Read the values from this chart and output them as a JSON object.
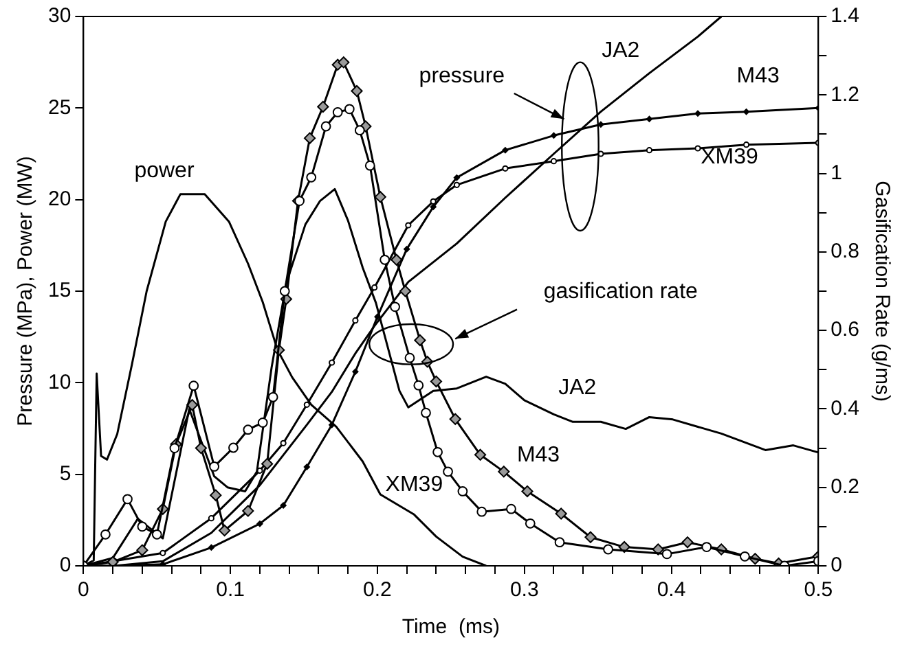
{
  "chart_data": {
    "type": "line",
    "xlabel": "Time  (ms)",
    "ylabel": "Pressure (MPa), Power (MW)",
    "y2label": "Gasification Rate (g/ms)",
    "xlim": [
      0,
      0.5
    ],
    "xticks": [
      0,
      {
        "value": 0.02,
        "label": null
      },
      {
        "value": 0.04,
        "label": null
      },
      {
        "value": 0.06,
        "label": null
      },
      {
        "value": 0.08,
        "label": null
      },
      0.1,
      {
        "value": 0.12,
        "label": null
      },
      {
        "value": 0.14,
        "label": null
      },
      {
        "value": 0.16,
        "label": null
      },
      {
        "value": 0.18,
        "label": null
      },
      0.2,
      {
        "value": 0.22,
        "label": null
      },
      {
        "value": 0.24,
        "label": null
      },
      {
        "value": 0.26,
        "label": null
      },
      {
        "value": 0.28,
        "label": null
      },
      0.3,
      {
        "value": 0.32,
        "label": null
      },
      {
        "value": 0.34,
        "label": null
      },
      {
        "value": 0.36,
        "label": null
      },
      {
        "value": 0.38,
        "label": null
      },
      0.4,
      {
        "value": 0.42,
        "label": null
      },
      {
        "value": 0.44,
        "label": null
      },
      {
        "value": 0.46,
        "label": null
      },
      {
        "value": 0.48,
        "label": null
      },
      0.5
    ],
    "ylim": [
      0,
      30
    ],
    "yticks": [
      0,
      5,
      10,
      15,
      20,
      25,
      30
    ],
    "y2lim": [
      0,
      1.4
    ],
    "y2ticks": [
      0,
      {
        "value": 0.1,
        "label": null
      },
      0.2,
      {
        "value": 0.3,
        "label": null
      },
      0.4,
      {
        "value": 0.5,
        "label": null
      },
      0.6,
      {
        "value": 0.7,
        "label": null
      },
      0.8,
      {
        "value": 0.9,
        "label": null
      },
      1,
      {
        "value": 1.1,
        "label": null
      },
      1.2,
      {
        "value": 1.3,
        "label": null
      },
      1.4
    ],
    "grid": false,
    "legend": false,
    "line_style": "solid",
    "series": [
      {
        "name": "power",
        "color": "#000000",
        "marker": "none",
        "x": [
          0,
          0.007,
          0.009,
          0.012,
          0.016,
          0.023,
          0.033,
          0.043,
          0.056,
          0.066,
          0.0825,
          0.099,
          0.112,
          0.122,
          0.132,
          0.142,
          0.155,
          0.172,
          0.19,
          0.202,
          0.225,
          0.24,
          0.258,
          0.274
        ],
        "values": [
          0,
          0.3,
          10.5,
          6,
          5.8,
          7.2,
          11,
          15,
          18.8,
          20.3,
          20.3,
          18.8,
          16.5,
          14.4,
          11.8,
          10.3,
          8.8,
          7.6,
          5.7,
          3.9,
          2.8,
          1.6,
          0.5,
          0
        ]
      },
      {
        "name": "JA2",
        "color": "#000000",
        "marker": "none",
        "x": [
          0,
          0.021,
          0.054,
          0.087,
          0.12,
          0.152,
          0.169,
          0.185,
          0.198,
          0.221,
          0.254,
          0.287,
          0.32,
          0.352,
          0.385,
          0.418,
          0.434
        ],
        "values": [
          0,
          0,
          0.25,
          1.8,
          4.4,
          7.7,
          9.5,
          11.6,
          13.1,
          15.5,
          17.6,
          20.1,
          22.5,
          24.8,
          26.9,
          28.9,
          30
        ]
      },
      {
        "name": "M43",
        "color": "#000000",
        "marker": "diamond",
        "x": [
          0,
          0.021,
          0.054,
          0.087,
          0.12,
          0.136,
          0.152,
          0.169,
          0.185,
          0.2,
          0.22,
          0.238,
          0.254,
          0.287,
          0.32,
          0.352,
          0.385,
          0.418,
          0.451,
          0.5
        ],
        "values": [
          0,
          0,
          0.08,
          1.0,
          2.3,
          3.3,
          5.4,
          7.7,
          10.6,
          13.6,
          17.3,
          19.6,
          21.2,
          22.7,
          23.5,
          24.1,
          24.4,
          24.7,
          24.8,
          25.0
        ]
      },
      {
        "name": "XM39",
        "color": "#000000",
        "marker": "circle",
        "x": [
          0,
          0.021,
          0.054,
          0.087,
          0.12,
          0.136,
          0.152,
          0.169,
          0.185,
          0.198,
          0.221,
          0.238,
          0.254,
          0.287,
          0.32,
          0.352,
          0.385,
          0.418,
          0.451,
          0.5
        ],
        "values": [
          0,
          0.26,
          0.7,
          2.6,
          5.2,
          6.7,
          8.8,
          11.1,
          13.4,
          15.2,
          18.6,
          19.9,
          20.8,
          21.7,
          22.1,
          22.5,
          22.7,
          22.8,
          23.0,
          23.1
        ]
      },
      {
        "name": "JA2",
        "color": "#000000",
        "marker": "none",
        "axis": "y2",
        "x": [
          0,
          0.02,
          0.037,
          0.054,
          0.072,
          0.089,
          0.098,
          0.11,
          0.118,
          0.128,
          0.138,
          0.151,
          0.161,
          0.171,
          0.18,
          0.19,
          0.199,
          0.215,
          0.221,
          0.238,
          0.254,
          0.274,
          0.287,
          0.3,
          0.32,
          0.333,
          0.352,
          0.369,
          0.385,
          0.401,
          0.434,
          0.464,
          0.483,
          0.5
        ],
        "values": [
          0,
          0.02,
          0.12,
          0.07,
          0.4,
          0.228,
          0.2,
          0.19,
          0.24,
          0.505,
          0.72,
          0.87,
          0.93,
          0.96,
          0.88,
          0.76,
          0.67,
          0.446,
          0.404,
          0.446,
          0.452,
          0.482,
          0.464,
          0.422,
          0.386,
          0.367,
          0.367,
          0.349,
          0.379,
          0.373,
          0.337,
          0.295,
          0.307,
          0.289
        ]
      },
      {
        "name": "M43",
        "color": "#000000",
        "marker": "diamond",
        "axis": "y2",
        "x": [
          0,
          0.02,
          0.04,
          0.054,
          0.063,
          0.074,
          0.08,
          0.09,
          0.096,
          0.112,
          0.125,
          0.133,
          0.138,
          0.146,
          0.154,
          0.163,
          0.173,
          0.177,
          0.186,
          0.192,
          0.202,
          0.213,
          0.219,
          0.229,
          0.234,
          0.24,
          0.253,
          0.27,
          0.286,
          0.302,
          0.325,
          0.345,
          0.368,
          0.391,
          0.411,
          0.434,
          0.457,
          0.473,
          0.5
        ],
        "values": [
          0,
          0.01,
          0.04,
          0.145,
          0.31,
          0.41,
          0.3,
          0.18,
          0.09,
          0.14,
          0.26,
          0.55,
          0.68,
          0.93,
          1.09,
          1.17,
          1.277,
          1.283,
          1.21,
          1.12,
          0.94,
          0.78,
          0.7,
          0.575,
          0.52,
          0.47,
          0.374,
          0.283,
          0.24,
          0.19,
          0.133,
          0.073,
          0.048,
          0.042,
          0.06,
          0.042,
          0.018,
          0.006,
          0.024
        ]
      },
      {
        "name": "XM39",
        "color": "#000000",
        "marker": "circle",
        "axis": "y2",
        "x": [
          0,
          0.015,
          0.03,
          0.04,
          0.05,
          0.062,
          0.075,
          0.089,
          0.102,
          0.112,
          0.122,
          0.129,
          0.137,
          0.147,
          0.155,
          0.165,
          0.173,
          0.181,
          0.188,
          0.195,
          0.205,
          0.212,
          0.222,
          0.228,
          0.233,
          0.241,
          0.248,
          0.258,
          0.271,
          0.291,
          0.304,
          0.324,
          0.357,
          0.397,
          0.424,
          0.45,
          0.477,
          0.5
        ],
        "values": [
          0,
          0.08,
          0.17,
          0.1,
          0.08,
          0.3,
          0.459,
          0.253,
          0.301,
          0.347,
          0.365,
          0.43,
          0.7,
          0.93,
          0.99,
          1.12,
          1.156,
          1.164,
          1.11,
          1.02,
          0.78,
          0.66,
          0.53,
          0.46,
          0.39,
          0.29,
          0.24,
          0.19,
          0.138,
          0.145,
          0.108,
          0.06,
          0.042,
          0.03,
          0.048,
          0.024,
          0,
          0.012
        ]
      }
    ],
    "annotations": [
      "pressure",
      "gasification rate"
    ]
  }
}
